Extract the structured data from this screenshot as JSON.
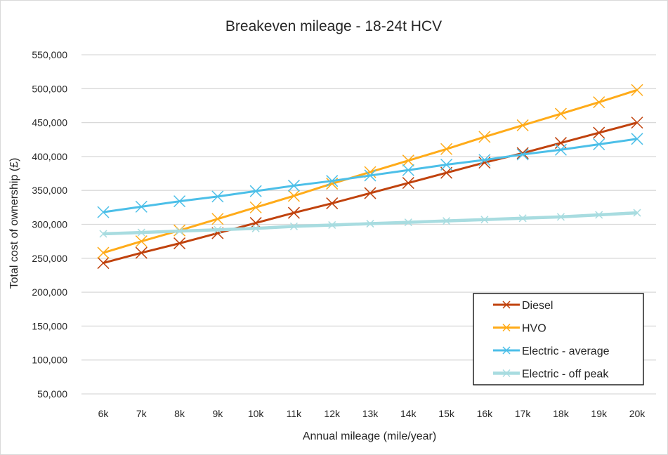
{
  "chart_data": {
    "type": "line",
    "title": "Breakeven mileage - 18-24t HCV",
    "xlabel": "Annual mileage (mile/year)",
    "ylabel": "Total cost of ownership (£)",
    "categories": [
      "6k",
      "7k",
      "8k",
      "9k",
      "10k",
      "11k",
      "12k",
      "13k",
      "14k",
      "15k",
      "16k",
      "17k",
      "18k",
      "19k",
      "20k"
    ],
    "ylim": [
      50000,
      550000
    ],
    "yticks": [
      50000,
      100000,
      150000,
      200000,
      250000,
      300000,
      350000,
      400000,
      450000,
      500000,
      550000
    ],
    "ytick_labels": [
      "50,000",
      "100,000",
      "150,000",
      "200,000",
      "250,000",
      "300,000",
      "350,000",
      "400,000",
      "450,000",
      "500,000",
      "550,000"
    ],
    "grid": true,
    "legend_position": "bottom-right",
    "series": [
      {
        "name": "Diesel",
        "color": "#c0420d",
        "marker": "x",
        "values": [
          243000,
          258000,
          272000,
          287000,
          302000,
          317000,
          331000,
          346000,
          361000,
          376000,
          391000,
          405000,
          420000,
          435000,
          450000
        ]
      },
      {
        "name": "HVO",
        "color": "#ffab19",
        "marker": "x",
        "values": [
          258000,
          275000,
          291000,
          308000,
          325000,
          342000,
          360000,
          377000,
          394000,
          411000,
          429000,
          446000,
          463000,
          480000,
          498000
        ]
      },
      {
        "name": "Electric - average",
        "color": "#4cbfe8",
        "marker": "x",
        "values": [
          318000,
          326000,
          334000,
          341000,
          349000,
          357000,
          364000,
          372000,
          380000,
          388000,
          395000,
          403000,
          410000,
          418000,
          426000
        ]
      },
      {
        "name": "Electric - off peak",
        "color": "#a8dce0",
        "marker": "x",
        "values": [
          286000,
          288000,
          290000,
          292000,
          294000,
          297000,
          299000,
          301000,
          303000,
          305000,
          307000,
          309000,
          311000,
          314000,
          317000
        ]
      }
    ]
  }
}
